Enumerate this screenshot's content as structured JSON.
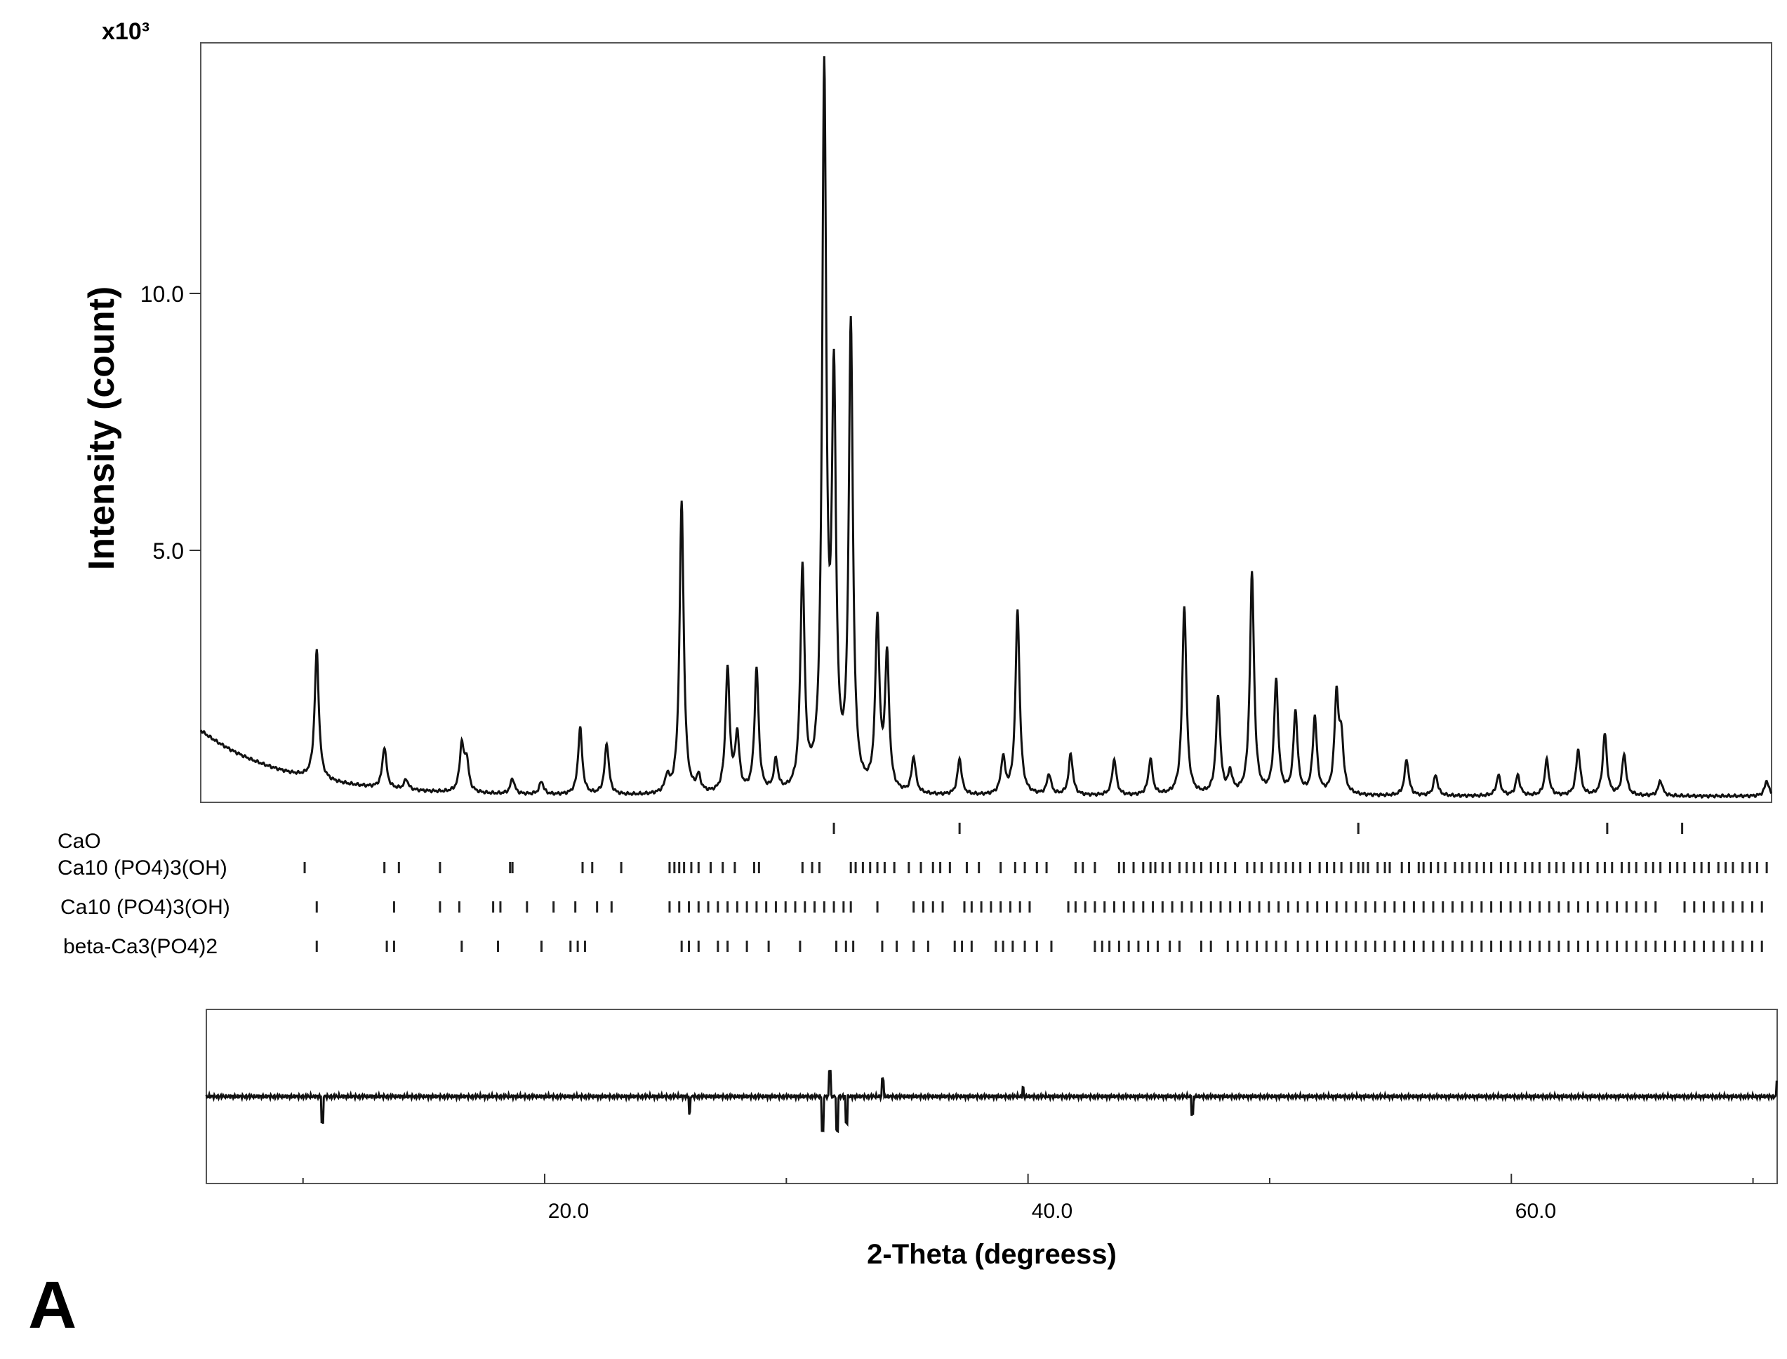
{
  "chart_data": {
    "type": "line",
    "panel_label": "A",
    "xlabel": "2-Theta (degreess)",
    "ylabel": "Intensity (count)",
    "y_multiplier": "x10³",
    "xlim": [
      6.0,
      71.0
    ],
    "ylim": [
      0,
      14.8
    ],
    "x_ticks": [
      20.0,
      40.0,
      60.0
    ],
    "x_tick_labels": [
      "20.0",
      "40.0",
      "60.0"
    ],
    "y_ticks": [
      5.0,
      10.0
    ],
    "y_tick_labels": [
      "5.0",
      "10.0"
    ],
    "grid": false,
    "background": {
      "start": 1.4,
      "decay": 0.28,
      "floor": 0.12
    },
    "peaks": [
      [
        10.8,
        2.5
      ],
      [
        13.6,
        0.8
      ],
      [
        14.5,
        0.2
      ],
      [
        16.8,
        0.9
      ],
      [
        17.0,
        0.6
      ],
      [
        18.9,
        0.3
      ],
      [
        20.1,
        0.25
      ],
      [
        21.7,
        1.3
      ],
      [
        22.8,
        1.0
      ],
      [
        25.3,
        0.3
      ],
      [
        25.9,
        5.7
      ],
      [
        26.6,
        0.3
      ],
      [
        27.8,
        2.4
      ],
      [
        28.2,
        1.1
      ],
      [
        29.0,
        2.4
      ],
      [
        29.8,
        0.6
      ],
      [
        30.9,
        4.3
      ],
      [
        31.8,
        13.8
      ],
      [
        32.2,
        7.6
      ],
      [
        32.9,
        9.0
      ],
      [
        34.0,
        3.3
      ],
      [
        34.4,
        2.6
      ],
      [
        35.5,
        0.7
      ],
      [
        37.4,
        0.7
      ],
      [
        39.2,
        0.7
      ],
      [
        39.8,
        3.6
      ],
      [
        41.1,
        0.4
      ],
      [
        42.0,
        0.8
      ],
      [
        43.8,
        0.7
      ],
      [
        45.3,
        0.7
      ],
      [
        46.7,
        3.7
      ],
      [
        48.1,
        1.9
      ],
      [
        48.6,
        0.4
      ],
      [
        49.5,
        4.3
      ],
      [
        50.5,
        2.2
      ],
      [
        51.3,
        1.6
      ],
      [
        52.1,
        1.5
      ],
      [
        53.0,
        1.9
      ],
      [
        53.2,
        1.0
      ],
      [
        55.9,
        0.7
      ],
      [
        57.1,
        0.4
      ],
      [
        59.7,
        0.4
      ],
      [
        60.5,
        0.4
      ],
      [
        61.7,
        0.7
      ],
      [
        63.0,
        0.9
      ],
      [
        64.1,
        1.2
      ],
      [
        64.9,
        0.8
      ],
      [
        66.4,
        0.3
      ],
      [
        70.8,
        0.3
      ]
    ],
    "difference": {
      "ylim": [
        -1,
        1
      ],
      "baseline": 0,
      "spikes": [
        [
          10.8,
          -0.3
        ],
        [
          26.0,
          -0.2
        ],
        [
          31.5,
          -0.4
        ],
        [
          31.8,
          0.3
        ],
        [
          32.1,
          -0.4
        ],
        [
          32.5,
          -0.3
        ],
        [
          34.0,
          0.2
        ],
        [
          39.8,
          0.1
        ],
        [
          46.8,
          -0.2
        ],
        [
          71.0,
          0.2
        ]
      ]
    },
    "reflection_rows": [
      {
        "label": "CaO",
        "positions": [
          32.2,
          37.4,
          53.9,
          64.2,
          67.3
        ]
      },
      {
        "label": "Ca10 (PO4)3(OH)",
        "positions": [
          10.3,
          13.6,
          14.2,
          15.9,
          18.8,
          18.9,
          21.8,
          22.2,
          23.4,
          25.4,
          25.6,
          25.8,
          26.0,
          26.3,
          26.6,
          27.1,
          27.6,
          28.1,
          28.9,
          29.1,
          30.9,
          31.3,
          31.6,
          32.9,
          33.1,
          33.4,
          33.7,
          34.0,
          34.3,
          34.7,
          35.3,
          35.8,
          36.3,
          36.6,
          37.0,
          37.7,
          38.2,
          39.1,
          39.7,
          40.1,
          40.6,
          41.0,
          42.2,
          42.5,
          43.0,
          44.0,
          44.2,
          44.6,
          45.0,
          45.3,
          45.5,
          45.8,
          46.1,
          46.5,
          46.8,
          47.1,
          47.4,
          47.8,
          48.1,
          48.4,
          48.8,
          49.3,
          49.6,
          49.9,
          50.3,
          50.6,
          50.9,
          51.2,
          51.5,
          51.9,
          52.3,
          52.6,
          52.9,
          53.2,
          53.6,
          53.9,
          54.1,
          54.3,
          54.7,
          55.0,
          55.2,
          55.7,
          56.0,
          56.4,
          56.6,
          56.9,
          57.2,
          57.5,
          57.9,
          58.2,
          58.5,
          58.8,
          59.1,
          59.4,
          59.8,
          60.1,
          60.4,
          60.8,
          61.1,
          61.4,
          61.8,
          62.1,
          62.4,
          62.8,
          63.1,
          63.4,
          63.8,
          64.1,
          64.4,
          64.8,
          65.1,
          65.4,
          65.8,
          66.1,
          66.4,
          66.8,
          67.1,
          67.4,
          67.8,
          68.1,
          68.4,
          68.8,
          69.1,
          69.4,
          69.8,
          70.1,
          70.4,
          70.8
        ]
      },
      {
        "label": "Ca10 (PO4)3(OH)",
        "positions": [
          10.8,
          14.0,
          15.9,
          16.7,
          18.1,
          18.4,
          19.5,
          20.6,
          21.5,
          22.4,
          23.0,
          25.4,
          25.8,
          26.2,
          26.6,
          27.0,
          27.4,
          27.8,
          28.2,
          28.6,
          29.0,
          29.4,
          29.8,
          30.2,
          30.6,
          31.0,
          31.4,
          31.8,
          32.2,
          32.6,
          32.9,
          34.0,
          35.5,
          35.9,
          36.3,
          36.7,
          37.6,
          37.9,
          38.3,
          38.7,
          39.1,
          39.5,
          39.9,
          40.3,
          41.9,
          42.2,
          42.6,
          43.0,
          43.4,
          43.8,
          44.2,
          44.6,
          45.0,
          45.4,
          45.8,
          46.2,
          46.6,
          47.0,
          47.4,
          47.8,
          48.2,
          48.6,
          49.0,
          49.4,
          49.8,
          50.2,
          50.6,
          51.0,
          51.4,
          51.8,
          52.2,
          52.6,
          53.0,
          53.4,
          53.8,
          54.2,
          54.6,
          55.0,
          55.4,
          55.8,
          56.2,
          56.6,
          57.0,
          57.4,
          57.8,
          58.2,
          58.6,
          59.0,
          59.4,
          59.8,
          60.2,
          60.6,
          61.0,
          61.4,
          61.8,
          62.2,
          62.6,
          63.0,
          63.4,
          63.8,
          64.2,
          64.6,
          65.0,
          65.4,
          65.8,
          66.2,
          67.4,
          67.8,
          68.2,
          68.6,
          69.0,
          69.4,
          69.8,
          70.2,
          70.6
        ]
      },
      {
        "label": "beta-Ca3(PO4)2",
        "positions": [
          10.8,
          13.7,
          14.0,
          16.8,
          18.3,
          20.1,
          21.3,
          21.6,
          21.9,
          25.9,
          26.2,
          26.6,
          27.4,
          27.8,
          28.6,
          29.5,
          30.8,
          32.3,
          32.7,
          33.0,
          34.2,
          34.8,
          35.5,
          36.1,
          37.2,
          37.5,
          37.9,
          38.9,
          39.2,
          39.6,
          40.1,
          40.6,
          41.2,
          43.0,
          43.3,
          43.6,
          44.0,
          44.4,
          44.8,
          45.2,
          45.6,
          46.1,
          46.5,
          47.4,
          47.8,
          48.5,
          48.9,
          49.3,
          49.7,
          50.1,
          50.5,
          50.9,
          51.4,
          51.8,
          52.2,
          52.6,
          53.0,
          53.4,
          53.8,
          54.2,
          54.6,
          55.0,
          55.4,
          55.8,
          56.2,
          56.6,
          57.0,
          57.4,
          57.8,
          58.2,
          58.6,
          59.0,
          59.4,
          59.8,
          60.2,
          60.6,
          61.0,
          61.4,
          61.8,
          62.2,
          62.6,
          63.0,
          63.4,
          63.8,
          64.2,
          64.6,
          65.0,
          65.4,
          65.8,
          66.2,
          66.6,
          67.0,
          67.4,
          67.8,
          68.2,
          68.6,
          69.0,
          69.4,
          69.8,
          70.2,
          70.6
        ]
      }
    ]
  }
}
